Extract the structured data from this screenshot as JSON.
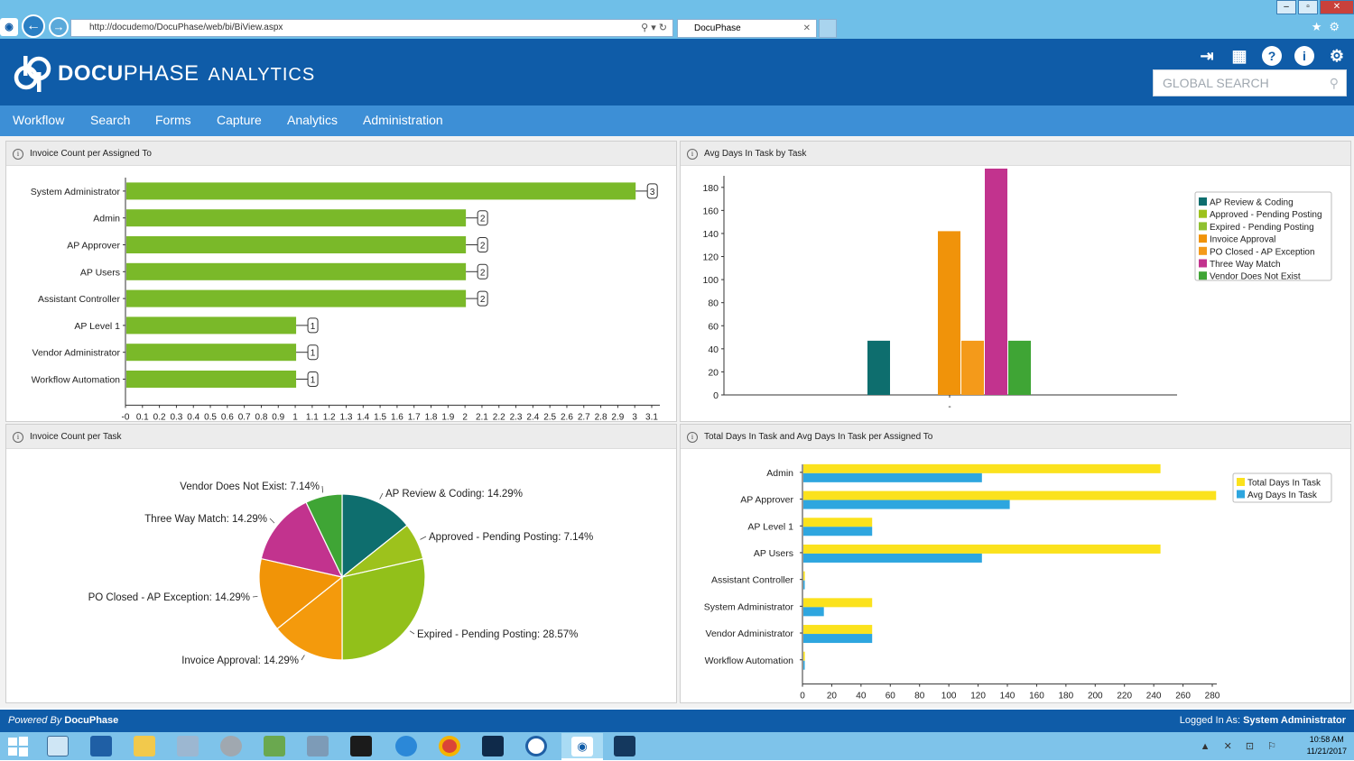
{
  "browser": {
    "url": "http://docudemo/DocuPhase/web/bi/BiView.aspx",
    "tab_title": "DocuPhase",
    "win_min": "–",
    "win_max": "▫",
    "win_close": "✕",
    "back_icon": "←",
    "forward_icon": "→",
    "addr_controls": "⚲ ▾ ↻",
    "tab_close": "✕",
    "fav_icons": "★⚙"
  },
  "app": {
    "logo_bold": "DOCU",
    "logo_rest": "PHASE",
    "logo_suffix": "ANALYTICS",
    "search_placeholder": "GLOBAL SEARCH",
    "header_icons": [
      "logout-icon",
      "grid-icon",
      "help-icon",
      "info-icon",
      "gear-icon"
    ]
  },
  "nav": {
    "items": [
      "Workflow",
      "Search",
      "Forms",
      "Capture",
      "Analytics",
      "Administration"
    ]
  },
  "panels": {
    "p1": {
      "title": "Invoice Count per Assigned To"
    },
    "p2": {
      "title": "Avg Days In Task by Task"
    },
    "p3": {
      "title": "Invoice Count per Task"
    },
    "p4": {
      "title": "Total Days In Task and Avg Days In Task per Assigned To"
    }
  },
  "chart_data": [
    {
      "type": "bar",
      "orientation": "horizontal",
      "categories": [
        "System Administrator",
        "Admin",
        "AP Approver",
        "AP Users",
        "Assistant Controller",
        "AP Level 1",
        "Vendor Administrator",
        "Workflow Automation"
      ],
      "values": [
        3,
        2,
        2,
        2,
        2,
        1,
        1,
        1
      ],
      "xlim": [
        0,
        3.1
      ],
      "xticks": [
        "-0",
        "0.1",
        "0.2",
        "0.3",
        "0.4",
        "0.5",
        "0.6",
        "0.7",
        "0.8",
        "0.9",
        "1",
        "1.1",
        "1.2",
        "1.3",
        "1.4",
        "1.5",
        "1.6",
        "1.7",
        "1.8",
        "1.9",
        "2",
        "2.1",
        "2.2",
        "2.3",
        "2.4",
        "2.5",
        "2.6",
        "2.7",
        "2.8",
        "2.9",
        "3",
        "3.1"
      ],
      "color": "#7ab929"
    },
    {
      "type": "bar",
      "categories": [
        "-"
      ],
      "ylim": [
        0,
        190
      ],
      "yticks": [
        "0",
        "20",
        "40",
        "60",
        "80",
        "100",
        "120",
        "140",
        "160",
        "180"
      ],
      "legend_position": "right",
      "series": [
        {
          "name": "AP Review & Coding",
          "value": 47,
          "color": "#0e6e6e"
        },
        {
          "name": "Approved - Pending Posting",
          "value": 0,
          "color": "#9dc21c"
        },
        {
          "name": "Expired - Pending Posting",
          "value": 0,
          "color": "#8fc030"
        },
        {
          "name": "Invoice Approval",
          "value": 142,
          "color": "#f0930a"
        },
        {
          "name": "PO Closed - AP Exception",
          "value": 47,
          "color": "#f49a1a"
        },
        {
          "name": "Three Way Match",
          "value": 198,
          "color": "#c2338e"
        },
        {
          "name": "Vendor Does Not Exist",
          "value": 47,
          "color": "#3fa535"
        }
      ]
    },
    {
      "type": "pie",
      "slices": [
        {
          "label": "AP Review & Coding: 14.29%",
          "value": 14.29,
          "color": "#0e6e6e"
        },
        {
          "label": "Approved - Pending Posting: 7.14%",
          "value": 7.14,
          "color": "#9dc21c"
        },
        {
          "label": "Expired - Pending Posting: 28.57%",
          "value": 28.57,
          "color": "#92c01a"
        },
        {
          "label": "Invoice Approval: 14.29%",
          "value": 14.29,
          "color": "#f49a0c"
        },
        {
          "label": "PO Closed - AP Exception: 14.29%",
          "value": 14.29,
          "color": "#f19407"
        },
        {
          "label": "Three Way Match: 14.29%",
          "value": 14.29,
          "color": "#c2338e"
        },
        {
          "label": "Vendor Does Not Exist: 7.14%",
          "value": 7.14,
          "color": "#3fa535"
        }
      ]
    },
    {
      "type": "bar",
      "orientation": "horizontal",
      "categories": [
        "Admin",
        "AP Approver",
        "AP Level 1",
        "AP Users",
        "Assistant Controller",
        "System Administrator",
        "Vendor Administrator",
        "Workflow Automation"
      ],
      "xlim": [
        0,
        280
      ],
      "xticks": [
        "0",
        "20",
        "40",
        "60",
        "80",
        "100",
        "120",
        "140",
        "160",
        "180",
        "200",
        "220",
        "240",
        "260",
        "280"
      ],
      "legend_position": "right",
      "series": [
        {
          "name": "Total Days In Task",
          "values": [
            244,
            282,
            47,
            244,
            1,
            47,
            47,
            1
          ],
          "color": "#fbe21d"
        },
        {
          "name": "Avg Days In Task",
          "values": [
            122,
            141,
            47,
            122,
            0.5,
            14,
            47,
            0.5
          ],
          "color": "#2ea6df"
        }
      ]
    }
  ],
  "footer": {
    "powered_prefix": "Powered By ",
    "powered_brand": "DocuPhase",
    "logged_prefix": "Logged In As: ",
    "logged_user": "System Administrator"
  },
  "taskbar": {
    "time": "10:58 AM",
    "date": "11/21/2017",
    "tray_icons": "▲ ✕ ⊡ ⚐"
  }
}
